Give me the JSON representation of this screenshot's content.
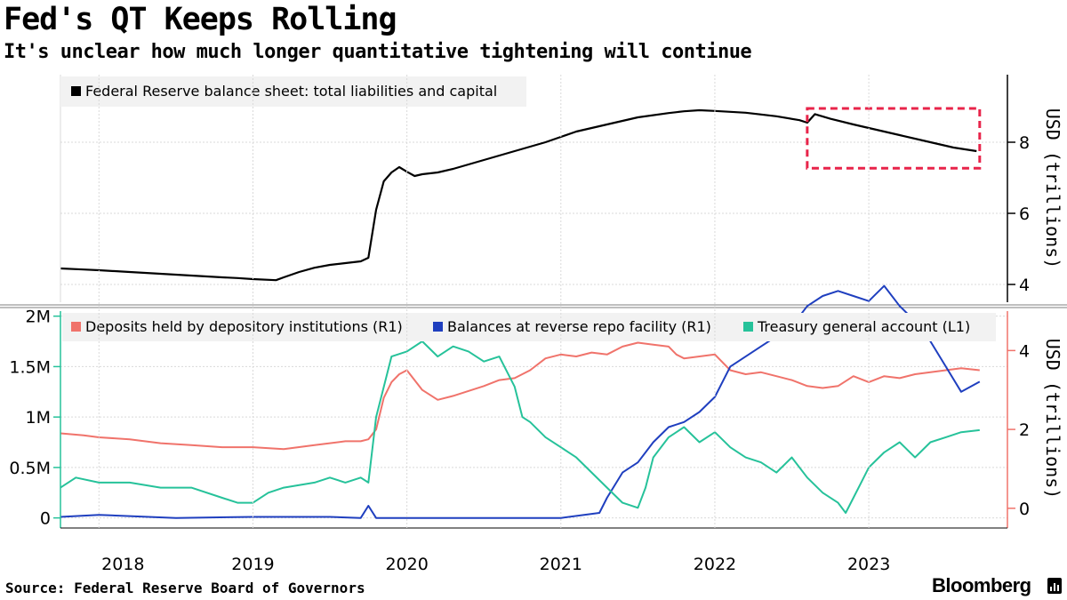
{
  "header": {
    "title": "Fed's QT Keeps Rolling",
    "subtitle": "It's unclear how much longer quantitative tightening will continue"
  },
  "footer": {
    "source": "Source: Federal Reserve Board of Governors",
    "brand": "Bloomberg"
  },
  "colors": {
    "balance_sheet": "#000000",
    "deposits": "#f0736b",
    "reverse_repo": "#1f3fbf",
    "tga": "#26c29a",
    "highlight_box": "#e8244a",
    "legend_bg": "#f2f2f2",
    "right_axis_lower": "#f0736b",
    "left_axis_lower": "#26c29a"
  },
  "x_axis": {
    "ticks": [
      {
        "label": "2018",
        "year": 2018.0
      },
      {
        "label": "2019",
        "year": 2019.0
      },
      {
        "label": "2020",
        "year": 2020.0
      },
      {
        "label": "2021",
        "year": 2021.0
      },
      {
        "label": "2022",
        "year": 2022.0
      },
      {
        "label": "2023",
        "year": 2023.0
      }
    ],
    "range": [
      2017.75,
      2023.75
    ]
  },
  "chart_data": [
    {
      "type": "line",
      "legend": "Federal Reserve balance sheet: total liabilities and capital",
      "ylabel": "USD (trillions)",
      "ylim": [
        3.5,
        9.9
      ],
      "yticks": [
        {
          "value": 4,
          "label": "4"
        },
        {
          "value": 6,
          "label": "6"
        },
        {
          "value": 8,
          "label": "8"
        }
      ],
      "y_axis_side": "right",
      "highlight": {
        "x": [
          2022.6,
          2023.72
        ],
        "y": [
          7.27,
          8.95
        ]
      },
      "series": [
        {
          "name": "Federal Reserve balance sheet: total liabilities and capital",
          "x": [
            2017.75,
            2017.9,
            2018.0,
            2018.2,
            2018.4,
            2018.6,
            2018.8,
            2018.9,
            2019.0,
            2019.15,
            2019.2,
            2019.3,
            2019.4,
            2019.5,
            2019.6,
            2019.7,
            2019.75,
            2019.8,
            2019.85,
            2019.9,
            2019.95,
            2020.0,
            2020.05,
            2020.1,
            2020.2,
            2020.3,
            2020.5,
            2020.7,
            2020.9,
            2021.0,
            2021.1,
            2021.3,
            2021.5,
            2021.7,
            2021.8,
            2021.9,
            2022.0,
            2022.2,
            2022.4,
            2022.55,
            2022.6,
            2022.65,
            2022.75,
            2022.9,
            2023.0,
            2023.2,
            2023.4,
            2023.55,
            2023.7
          ],
          "values": [
            4.45,
            4.42,
            4.4,
            4.35,
            4.3,
            4.25,
            4.2,
            4.18,
            4.15,
            4.12,
            4.2,
            4.35,
            4.47,
            4.55,
            4.6,
            4.65,
            4.75,
            6.1,
            6.9,
            7.15,
            7.3,
            7.17,
            7.05,
            7.1,
            7.15,
            7.25,
            7.5,
            7.75,
            8.0,
            8.15,
            8.3,
            8.5,
            8.7,
            8.82,
            8.87,
            8.9,
            8.88,
            8.83,
            8.73,
            8.62,
            8.55,
            8.79,
            8.66,
            8.5,
            8.4,
            8.2,
            8.0,
            7.85,
            7.75
          ]
        }
      ]
    },
    {
      "type": "line",
      "left_axis": {
        "ylim": [
          -0.1,
          2.05
        ],
        "ticks": [
          {
            "value": 0,
            "label": "0"
          },
          {
            "value": 0.5,
            "label": "0.5M"
          },
          {
            "value": 1,
            "label": "1M"
          },
          {
            "value": 1.5,
            "label": "1.5M"
          },
          {
            "value": 2,
            "label": "2M"
          }
        ]
      },
      "right_axis": {
        "label": "USD (trillions)",
        "ylim": [
          -0.5,
          5.0
        ],
        "ticks": [
          {
            "value": 0,
            "label": "0"
          },
          {
            "value": 2,
            "label": "2"
          },
          {
            "value": 4,
            "label": "4"
          }
        ]
      },
      "series": [
        {
          "name": "Deposits held by depository institutions (R1)",
          "axis": "right",
          "x": [
            2017.75,
            2017.9,
            2018.0,
            2018.2,
            2018.4,
            2018.6,
            2018.8,
            2019.0,
            2019.2,
            2019.4,
            2019.6,
            2019.7,
            2019.75,
            2019.8,
            2019.85,
            2019.9,
            2019.95,
            2020.0,
            2020.1,
            2020.2,
            2020.3,
            2020.5,
            2020.6,
            2020.7,
            2020.8,
            2020.9,
            2021.0,
            2021.1,
            2021.2,
            2021.3,
            2021.4,
            2021.5,
            2021.6,
            2021.7,
            2021.75,
            2021.8,
            2021.9,
            2022.0,
            2022.1,
            2022.2,
            2022.3,
            2022.4,
            2022.5,
            2022.6,
            2022.7,
            2022.8,
            2022.9,
            2023.0,
            2023.1,
            2023.2,
            2023.3,
            2023.4,
            2023.5,
            2023.6,
            2023.72
          ],
          "values": [
            1.9,
            1.85,
            1.8,
            1.75,
            1.65,
            1.6,
            1.55,
            1.55,
            1.5,
            1.6,
            1.7,
            1.7,
            1.75,
            2.0,
            2.8,
            3.2,
            3.4,
            3.5,
            3.0,
            2.75,
            2.85,
            3.1,
            3.25,
            3.3,
            3.5,
            3.8,
            3.9,
            3.85,
            3.95,
            3.9,
            4.1,
            4.2,
            4.15,
            4.1,
            3.9,
            3.8,
            3.85,
            3.9,
            3.5,
            3.4,
            3.45,
            3.35,
            3.25,
            3.1,
            3.05,
            3.1,
            3.35,
            3.2,
            3.35,
            3.3,
            3.4,
            3.45,
            3.5,
            3.55,
            3.5
          ]
        },
        {
          "name": "Balances at reverse repo facility (R1)",
          "axis": "left",
          "x": [
            2017.75,
            2018.0,
            2018.5,
            2019.0,
            2019.5,
            2019.7,
            2019.75,
            2019.8,
            2020.0,
            2020.5,
            2021.0,
            2021.25,
            2021.3,
            2021.4,
            2021.5,
            2021.6,
            2021.7,
            2021.8,
            2021.9,
            2022.0,
            2022.1,
            2022.2,
            2022.3,
            2022.4,
            2022.5,
            2022.6,
            2022.7,
            2022.8,
            2022.9,
            2023.0,
            2023.1,
            2023.2,
            2023.3,
            2023.4,
            2023.5,
            2023.6,
            2023.72
          ],
          "values": [
            0.01,
            0.03,
            0.0,
            0.01,
            0.01,
            0.0,
            0.12,
            0.0,
            0.0,
            0.0,
            0.0,
            0.05,
            0.2,
            0.45,
            0.55,
            0.75,
            0.9,
            0.95,
            1.05,
            1.2,
            1.5,
            1.6,
            1.7,
            1.8,
            1.9,
            2.1,
            2.2,
            2.25,
            2.2,
            2.15,
            2.3,
            2.1,
            1.95,
            1.75,
            1.5,
            1.25,
            1.35
          ]
        },
        {
          "name": "Treasury general account  (L1)",
          "axis": "left",
          "x": [
            2017.75,
            2017.85,
            2018.0,
            2018.2,
            2018.4,
            2018.6,
            2018.8,
            2018.9,
            2019.0,
            2019.1,
            2019.2,
            2019.4,
            2019.5,
            2019.6,
            2019.7,
            2019.75,
            2019.8,
            2019.9,
            2020.0,
            2020.1,
            2020.2,
            2020.3,
            2020.4,
            2020.5,
            2020.6,
            2020.7,
            2020.75,
            2020.8,
            2020.9,
            2021.0,
            2021.1,
            2021.2,
            2021.3,
            2021.4,
            2021.5,
            2021.55,
            2021.6,
            2021.7,
            2021.75,
            2021.8,
            2021.9,
            2022.0,
            2022.1,
            2022.2,
            2022.3,
            2022.4,
            2022.5,
            2022.6,
            2022.7,
            2022.8,
            2022.85,
            2022.9,
            2022.95,
            2023.0,
            2023.1,
            2023.2,
            2023.3,
            2023.4,
            2023.5,
            2023.6,
            2023.72
          ],
          "values": [
            0.3,
            0.4,
            0.35,
            0.35,
            0.3,
            0.3,
            0.2,
            0.15,
            0.15,
            0.25,
            0.3,
            0.35,
            0.4,
            0.35,
            0.4,
            0.35,
            1.0,
            1.6,
            1.65,
            1.75,
            1.6,
            1.7,
            1.65,
            1.55,
            1.6,
            1.3,
            1.0,
            0.95,
            0.8,
            0.7,
            0.6,
            0.45,
            0.3,
            0.15,
            0.1,
            0.3,
            0.6,
            0.8,
            0.85,
            0.9,
            0.75,
            0.85,
            0.7,
            0.6,
            0.55,
            0.45,
            0.6,
            0.4,
            0.25,
            0.15,
            0.05,
            0.2,
            0.35,
            0.5,
            0.65,
            0.75,
            0.6,
            0.75,
            0.8,
            0.85,
            0.87
          ]
        }
      ]
    }
  ]
}
